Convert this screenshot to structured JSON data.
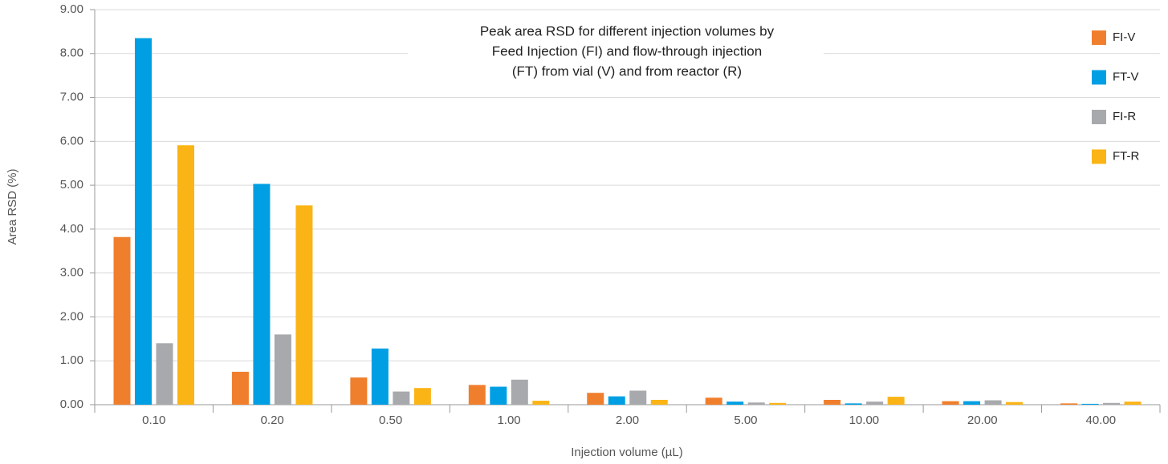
{
  "chart_data": {
    "type": "bar",
    "title": [
      "Peak area RSD for different injection volumes by",
      "Feed Injection (FI) and flow-through injection",
      "(FT) from vial (V) and from reactor (R)"
    ],
    "x_label": "Injection volume (µL)",
    "y_label": "Area RSD (%)",
    "categories": [
      "0.10",
      "0.20",
      "0.50",
      "1.00",
      "2.00",
      "5.00",
      "10.00",
      "20.00",
      "40.00"
    ],
    "series": [
      {
        "name": "FI-V",
        "color": "#f07f2d",
        "values": [
          3.82,
          0.75,
          0.62,
          0.45,
          0.27,
          0.16,
          0.11,
          0.08,
          0.03
        ]
      },
      {
        "name": "FT-V",
        "color": "#009fe3",
        "values": [
          8.35,
          5.03,
          1.28,
          0.41,
          0.19,
          0.07,
          0.03,
          0.08,
          0.02
        ]
      },
      {
        "name": "FI-R",
        "color": "#a7a9ac",
        "values": [
          1.4,
          1.6,
          0.3,
          0.57,
          0.32,
          0.05,
          0.07,
          0.1,
          0.04
        ]
      },
      {
        "name": "FT-R",
        "color": "#fbb415",
        "values": [
          5.91,
          4.54,
          0.38,
          0.09,
          0.11,
          0.04,
          0.18,
          0.06,
          0.07
        ]
      }
    ],
    "ylim": [
      0,
      9
    ],
    "yticks": [
      {
        "value": 0,
        "label": "0.00"
      },
      {
        "value": 1,
        "label": "1.00"
      },
      {
        "value": 2,
        "label": "2.00"
      },
      {
        "value": 3,
        "label": "3.00"
      },
      {
        "value": 4,
        "label": "4.00"
      },
      {
        "value": 5,
        "label": "5.00"
      },
      {
        "value": 6,
        "label": "6.00"
      },
      {
        "value": 7,
        "label": "7.00"
      },
      {
        "value": 8,
        "label": "8.00"
      },
      {
        "value": 9,
        "label": "9.00"
      }
    ],
    "grid": true,
    "legend": "right"
  }
}
